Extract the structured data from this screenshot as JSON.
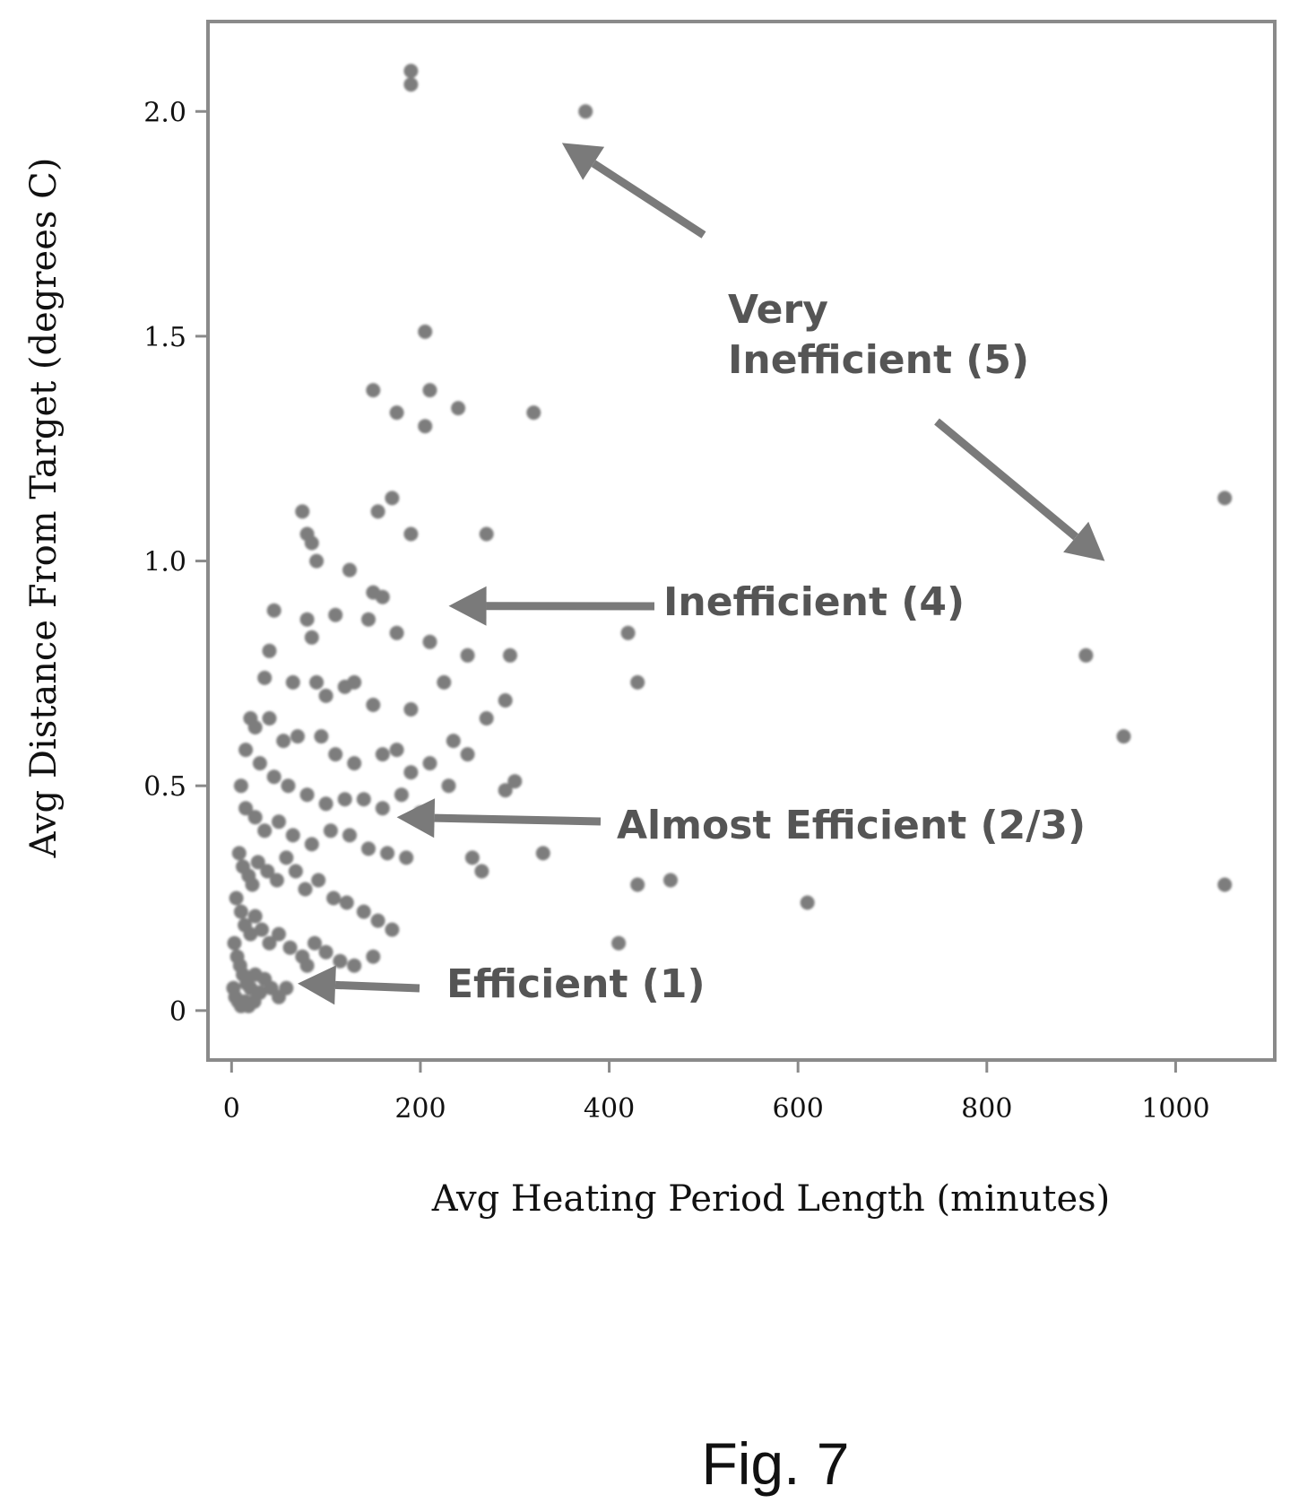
{
  "figure_label": "Fig. 7",
  "chart_data": {
    "type": "scatter",
    "xlabel": "Avg Heating Period Length (minutes)",
    "ylabel": "Avg Distance From Target (degrees C)",
    "xlim": [
      -25,
      1105
    ],
    "ylim": [
      -0.11,
      2.2
    ],
    "x_ticks": [
      0,
      200,
      400,
      600,
      800,
      1000
    ],
    "x_tick_labels": [
      "0",
      "200",
      "400",
      "600",
      "800",
      "1000"
    ],
    "y_ticks": [
      0,
      0.5,
      1.0,
      1.5,
      2.0
    ],
    "y_tick_labels": [
      "0",
      "0.5",
      "1.0",
      "1.5",
      "2.0"
    ],
    "grid": false,
    "point_color": "#7d7d7d",
    "annotation_color": "#555555",
    "annotations": [
      {
        "text_lines": [
          "Very",
          "Inefficient (5)"
        ],
        "targets": [
          [
            350,
            1.93
          ],
          [
            925,
            1.0
          ]
        ]
      },
      {
        "text_lines": [
          "Inefficient (4)"
        ],
        "targets": [
          [
            230,
            0.9
          ]
        ]
      },
      {
        "text_lines": [
          "Almost Efficient (2/3)"
        ],
        "targets": [
          [
            175,
            0.43
          ]
        ]
      },
      {
        "text_lines": [
          "Efficient (1)"
        ],
        "targets": [
          [
            70,
            0.06
          ]
        ]
      }
    ],
    "points": [
      [
        190,
        2.09
      ],
      [
        190,
        2.06
      ],
      [
        375,
        2.0
      ],
      [
        205,
        1.51
      ],
      [
        150,
        1.38
      ],
      [
        210,
        1.38
      ],
      [
        240,
        1.34
      ],
      [
        175,
        1.33
      ],
      [
        205,
        1.3
      ],
      [
        320,
        1.33
      ],
      [
        1052,
        1.14
      ],
      [
        75,
        1.11
      ],
      [
        80,
        1.06
      ],
      [
        85,
        1.04
      ],
      [
        90,
        1.0
      ],
      [
        155,
        1.11
      ],
      [
        170,
        1.14
      ],
      [
        190,
        1.06
      ],
      [
        270,
        1.06
      ],
      [
        125,
        0.98
      ],
      [
        160,
        0.92
      ],
      [
        150,
        0.93
      ],
      [
        145,
        0.87
      ],
      [
        110,
        0.88
      ],
      [
        45,
        0.89
      ],
      [
        80,
        0.87
      ],
      [
        85,
        0.83
      ],
      [
        175,
        0.84
      ],
      [
        210,
        0.82
      ],
      [
        420,
        0.84
      ],
      [
        905,
        0.79
      ],
      [
        250,
        0.79
      ],
      [
        295,
        0.79
      ],
      [
        430,
        0.73
      ],
      [
        40,
        0.8
      ],
      [
        35,
        0.74
      ],
      [
        65,
        0.73
      ],
      [
        90,
        0.73
      ],
      [
        100,
        0.7
      ],
      [
        120,
        0.72
      ],
      [
        130,
        0.73
      ],
      [
        150,
        0.68
      ],
      [
        190,
        0.67
      ],
      [
        225,
        0.73
      ],
      [
        290,
        0.69
      ],
      [
        270,
        0.65
      ],
      [
        945,
        0.61
      ],
      [
        20,
        0.65
      ],
      [
        25,
        0.63
      ],
      [
        40,
        0.65
      ],
      [
        55,
        0.6
      ],
      [
        70,
        0.61
      ],
      [
        95,
        0.61
      ],
      [
        110,
        0.57
      ],
      [
        130,
        0.55
      ],
      [
        160,
        0.57
      ],
      [
        175,
        0.58
      ],
      [
        190,
        0.53
      ],
      [
        210,
        0.55
      ],
      [
        235,
        0.6
      ],
      [
        250,
        0.57
      ],
      [
        300,
        0.51
      ],
      [
        290,
        0.49
      ],
      [
        230,
        0.5
      ],
      [
        15,
        0.58
      ],
      [
        30,
        0.55
      ],
      [
        45,
        0.52
      ],
      [
        60,
        0.5
      ],
      [
        80,
        0.48
      ],
      [
        100,
        0.46
      ],
      [
        120,
        0.47
      ],
      [
        140,
        0.47
      ],
      [
        160,
        0.45
      ],
      [
        180,
        0.48
      ],
      [
        200,
        0.44
      ],
      [
        10,
        0.5
      ],
      [
        15,
        0.45
      ],
      [
        25,
        0.43
      ],
      [
        35,
        0.4
      ],
      [
        50,
        0.42
      ],
      [
        65,
        0.39
      ],
      [
        85,
        0.37
      ],
      [
        105,
        0.4
      ],
      [
        125,
        0.39
      ],
      [
        145,
        0.36
      ],
      [
        165,
        0.35
      ],
      [
        185,
        0.34
      ],
      [
        255,
        0.34
      ],
      [
        265,
        0.31
      ],
      [
        330,
        0.35
      ],
      [
        465,
        0.29
      ],
      [
        430,
        0.28
      ],
      [
        1052,
        0.28
      ],
      [
        8,
        0.35
      ],
      [
        12,
        0.32
      ],
      [
        18,
        0.3
      ],
      [
        22,
        0.28
      ],
      [
        28,
        0.33
      ],
      [
        38,
        0.31
      ],
      [
        48,
        0.29
      ],
      [
        58,
        0.34
      ],
      [
        68,
        0.31
      ],
      [
        78,
        0.27
      ],
      [
        92,
        0.29
      ],
      [
        108,
        0.25
      ],
      [
        122,
        0.24
      ],
      [
        140,
        0.22
      ],
      [
        155,
        0.2
      ],
      [
        170,
        0.18
      ],
      [
        610,
        0.24
      ],
      [
        410,
        0.15
      ],
      [
        5,
        0.25
      ],
      [
        10,
        0.22
      ],
      [
        14,
        0.19
      ],
      [
        20,
        0.17
      ],
      [
        25,
        0.21
      ],
      [
        32,
        0.18
      ],
      [
        40,
        0.15
      ],
      [
        50,
        0.17
      ],
      [
        62,
        0.14
      ],
      [
        75,
        0.12
      ],
      [
        88,
        0.15
      ],
      [
        100,
        0.13
      ],
      [
        115,
        0.11
      ],
      [
        130,
        0.1
      ],
      [
        150,
        0.12
      ],
      [
        80,
        0.1
      ],
      [
        3,
        0.15
      ],
      [
        6,
        0.12
      ],
      [
        9,
        0.1
      ],
      [
        12,
        0.08
      ],
      [
        16,
        0.06
      ],
      [
        20,
        0.05
      ],
      [
        25,
        0.08
      ],
      [
        30,
        0.04
      ],
      [
        35,
        0.07
      ],
      [
        42,
        0.05
      ],
      [
        50,
        0.03
      ],
      [
        58,
        0.05
      ],
      [
        2,
        0.05
      ],
      [
        4,
        0.03
      ],
      [
        7,
        0.02
      ],
      [
        10,
        0.01
      ],
      [
        14,
        0.02
      ],
      [
        18,
        0.01
      ],
      [
        24,
        0.02
      ]
    ]
  }
}
